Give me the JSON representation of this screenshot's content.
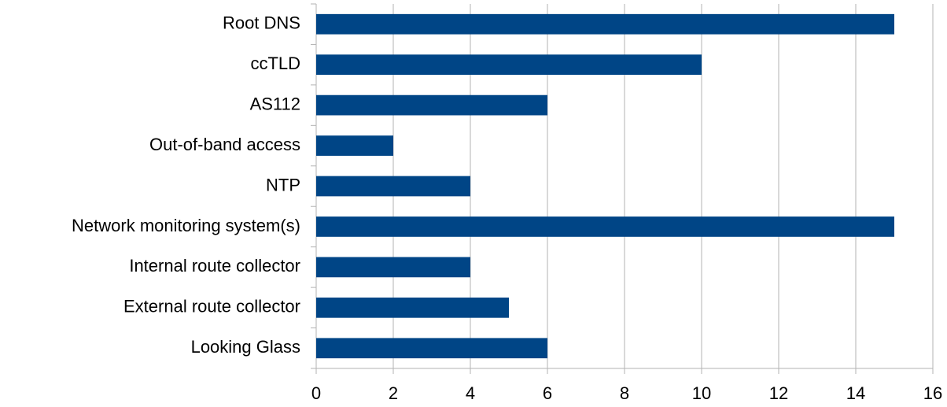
{
  "chart_data": {
    "type": "barh",
    "categories": [
      "Root DNS",
      "ccTLD",
      "AS112",
      "Out-of-band access",
      "NTP",
      "Network monitoring system(s)",
      "Internal route collector",
      "External route collector",
      "Looking Glass"
    ],
    "values": [
      15,
      10,
      6,
      2,
      4,
      15,
      4,
      5,
      6
    ],
    "color": "#004586",
    "xlim": [
      0,
      16
    ],
    "xticks": [
      0,
      2,
      4,
      6,
      8,
      10,
      12,
      14,
      16
    ],
    "grid": true
  }
}
